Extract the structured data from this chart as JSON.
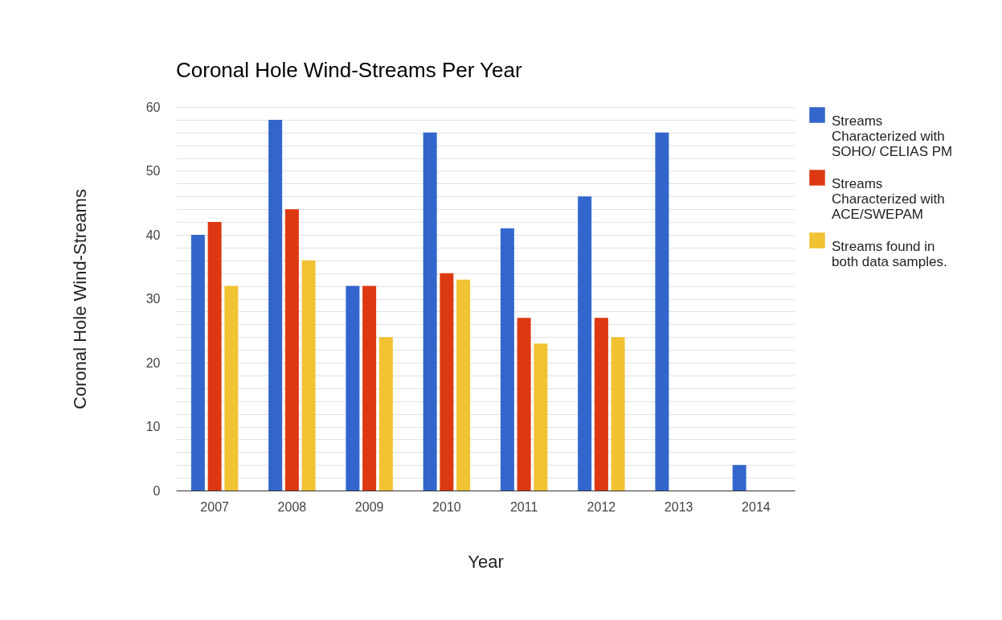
{
  "chart_data": {
    "type": "bar",
    "title": "Coronal Hole Wind-Streams Per Year",
    "xlabel": "Year",
    "ylabel": "Coronal Hole Wind-Streams",
    "categories": [
      "2007",
      "2008",
      "2009",
      "2010",
      "2011",
      "2012",
      "2013",
      "2014"
    ],
    "series": [
      {
        "name": "Streams Characterized with SOHO/ CELIAS PM",
        "color": "#3366cc",
        "values": [
          40,
          58,
          32,
          56,
          41,
          46,
          56,
          4
        ]
      },
      {
        "name": "Streams Characterized with ACE/SWEPAM",
        "color": "#dc3912",
        "values": [
          42,
          44,
          32,
          34,
          27,
          27,
          null,
          null
        ]
      },
      {
        "name": "Streams found in both data samples.",
        "color": "#f1c232",
        "values": [
          32,
          36,
          24,
          33,
          23,
          24,
          null,
          null
        ]
      }
    ],
    "ylim": [
      0,
      60
    ],
    "yticks": [
      0,
      {
        "value": 2,
        "label": null
      },
      {
        "value": 4,
        "label": null
      },
      {
        "value": 6,
        "label": null
      },
      {
        "value": 8,
        "label": null
      },
      10,
      {
        "value": 12,
        "label": null
      },
      {
        "value": 14,
        "label": null
      },
      {
        "value": 16,
        "label": null
      },
      {
        "value": 18,
        "label": null
      },
      20,
      {
        "value": 22,
        "label": null
      },
      {
        "value": 24,
        "label": null
      },
      {
        "value": 26,
        "label": null
      },
      {
        "value": 28,
        "label": null
      },
      30,
      {
        "value": 32,
        "label": null
      },
      {
        "value": 34,
        "label": null
      },
      {
        "value": 36,
        "label": null
      },
      {
        "value": 38,
        "label": null
      },
      40,
      {
        "value": 42,
        "label": null
      },
      {
        "value": 44,
        "label": null
      },
      {
        "value": 46,
        "label": null
      },
      {
        "value": 48,
        "label": null
      },
      50,
      {
        "value": 52,
        "label": null
      },
      {
        "value": 54,
        "label": null
      },
      {
        "value": 56,
        "label": null
      },
      {
        "value": 58,
        "label": null
      },
      60
    ],
    "grid": true,
    "legend": "right"
  }
}
